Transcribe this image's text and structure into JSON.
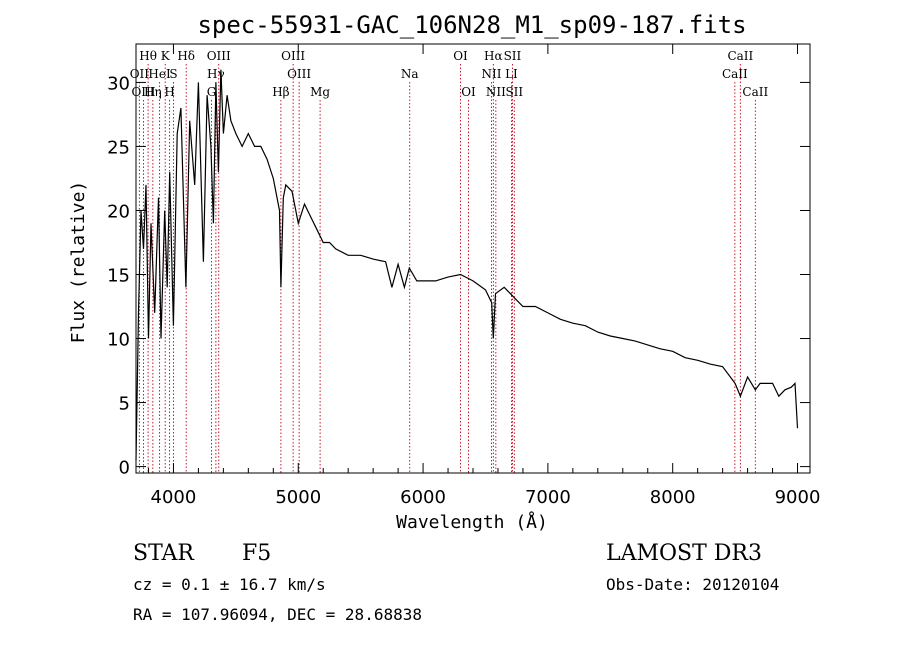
{
  "chart_data": {
    "type": "line",
    "title": "spec-55931-GAC_106N28_M1_sp09-187.fits",
    "xlabel": "Wavelength (Å)",
    "ylabel": "Flux (relative)",
    "xlim": [
      3700,
      9100
    ],
    "ylim": [
      -0.5,
      33
    ],
    "xticks": [
      4000,
      5000,
      6000,
      7000,
      8000,
      9000
    ],
    "yticks": [
      0,
      5,
      10,
      15,
      20,
      25,
      30
    ],
    "series": [
      {
        "name": "flux",
        "x": [
          3700,
          3720,
          3740,
          3760,
          3780,
          3800,
          3820,
          3850,
          3880,
          3900,
          3930,
          3950,
          3970,
          4000,
          4030,
          4060,
          4100,
          4130,
          4170,
          4200,
          4240,
          4270,
          4300,
          4320,
          4340,
          4360,
          4380,
          4400,
          4430,
          4460,
          4500,
          4550,
          4600,
          4650,
          4700,
          4750,
          4800,
          4850,
          4861,
          4880,
          4900,
          4950,
          5000,
          5050,
          5100,
          5150,
          5200,
          5250,
          5300,
          5400,
          5500,
          5600,
          5700,
          5750,
          5800,
          5850,
          5890,
          5950,
          6000,
          6100,
          6200,
          6300,
          6400,
          6500,
          6550,
          6563,
          6580,
          6650,
          6700,
          6800,
          6900,
          7000,
          7100,
          7200,
          7300,
          7400,
          7500,
          7600,
          7700,
          7800,
          7900,
          8000,
          8100,
          8200,
          8300,
          8400,
          8500,
          8542,
          8600,
          8662,
          8700,
          8800,
          8850,
          8900,
          8950,
          8980,
          9000
        ],
        "y": [
          0.5,
          12,
          20,
          17,
          22,
          10,
          19,
          12,
          21,
          10,
          20,
          14,
          23,
          11,
          26,
          28,
          14,
          27,
          22,
          30,
          16,
          29,
          25,
          19,
          30,
          23,
          31,
          26,
          29,
          27,
          26,
          25,
          26,
          25,
          25,
          24,
          22.5,
          20,
          14,
          21,
          22,
          21.5,
          19,
          20.5,
          19.5,
          18.5,
          17.5,
          17.5,
          17,
          16.5,
          16.5,
          16.2,
          16,
          14,
          15.8,
          14,
          15.5,
          14.5,
          14.5,
          14.5,
          14.8,
          15,
          14.5,
          13.8,
          12.8,
          10,
          13.5,
          14,
          13.5,
          12.5,
          12.5,
          12,
          11.5,
          11.2,
          11,
          10.5,
          10.2,
          10,
          9.8,
          9.5,
          9.2,
          9,
          8.5,
          8.3,
          8,
          7.8,
          6.5,
          5.5,
          7,
          6,
          6.5,
          6.5,
          5.5,
          6,
          6.2,
          6.5,
          3
        ]
      }
    ],
    "spectral_lines": [
      {
        "label": "Hθ",
        "wavelength": 3797,
        "row": 1
      },
      {
        "label": "K",
        "wavelength": 3934,
        "row": 1
      },
      {
        "label": "Hδ",
        "wavelength": 4102,
        "row": 1
      },
      {
        "label": "OIII",
        "wavelength": 4363,
        "row": 1
      },
      {
        "label": "OIII",
        "wavelength": 4959,
        "row": 1
      },
      {
        "label": "OI",
        "wavelength": 6300,
        "row": 1
      },
      {
        "label": "Hα",
        "wavelength": 6563,
        "row": 1
      },
      {
        "label": "SII",
        "wavelength": 6716,
        "row": 1
      },
      {
        "label": "CaII",
        "wavelength": 8542,
        "row": 1
      },
      {
        "label": "OII",
        "wavelength": 3727,
        "row": 2
      },
      {
        "label": "HeI",
        "wavelength": 3889,
        "row": 2
      },
      {
        "label": "S",
        "wavelength": 4000,
        "row": 2
      },
      {
        "label": "Hγ",
        "wavelength": 4340,
        "row": 2
      },
      {
        "label": "OIII",
        "wavelength": 5007,
        "row": 2
      },
      {
        "label": "Na",
        "wavelength": 5893,
        "row": 2
      },
      {
        "label": "NII",
        "wavelength": 6548,
        "row": 2
      },
      {
        "label": "LI",
        "wavelength": 6708,
        "row": 2
      },
      {
        "label": "CaII",
        "wavelength": 8498,
        "row": 2
      },
      {
        "label": "OIII",
        "wavelength": 3760,
        "row": 3
      },
      {
        "label": "Hη",
        "wavelength": 3835,
        "row": 3
      },
      {
        "label": "H",
        "wavelength": 3969,
        "row": 3
      },
      {
        "label": "G",
        "wavelength": 4305,
        "row": 3
      },
      {
        "label": "Hβ",
        "wavelength": 4861,
        "row": 3
      },
      {
        "label": "Mg",
        "wavelength": 5175,
        "row": 3
      },
      {
        "label": "OI",
        "wavelength": 6364,
        "row": 3
      },
      {
        "label": "NII",
        "wavelength": 6583,
        "row": 3
      },
      {
        "label": "SII",
        "wavelength": 6731,
        "row": 3
      },
      {
        "label": "CaII",
        "wavelength": 8662,
        "row": 3
      }
    ]
  },
  "info": {
    "object_class": "STAR",
    "subclass": "F5",
    "survey": "LAMOST DR3",
    "cz": "cz = 0.1 ± 16.7 km/s",
    "obs_date": "Obs-Date: 20120104",
    "radec": "RA = 107.96094, DEC =  28.68838"
  }
}
